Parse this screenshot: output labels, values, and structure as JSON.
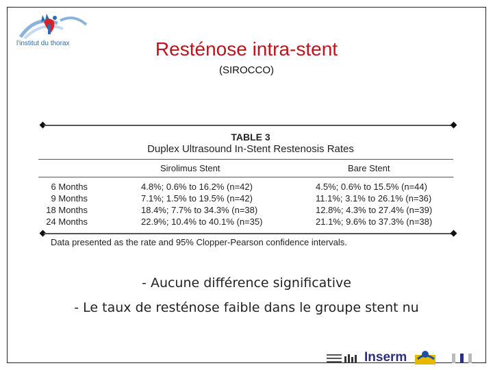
{
  "logo": {
    "text": "l'institut du thorax"
  },
  "title": "Resténose intra-stent",
  "subtitle": "(SIROCCO)",
  "table": {
    "label": "TABLE 3",
    "caption": "Duplex Ultrasound In-Stent Restenosis Rates",
    "col_siro": "Sirolimus Stent",
    "col_bare": "Bare Stent",
    "rows": [
      {
        "label": "6 Months",
        "siro": "4.8%; 0.6% to 16.2% (n=42)",
        "bare": "4.5%; 0.6% to 15.5% (n=44)"
      },
      {
        "label": "9 Months",
        "siro": "7.1%; 1.5% to 19.5% (n=42)",
        "bare": "11.1%; 3.1% to 26.1% (n=36)"
      },
      {
        "label": "18 Months",
        "siro": "18.4%; 7.7% to 34.3% (n=38)",
        "bare": "12.8%; 4.3% to 27.4% (n=39)"
      },
      {
        "label": "24 Months",
        "siro": "22.9%; 10.4% to 40.1% (n=35)",
        "bare": "21.1%; 9.6% to 37.3% (n=38)"
      }
    ],
    "footnote": "Data presented as the rate and 95% Clopper-Pearson confidence intervals."
  },
  "bullets": [
    "- Aucune différence significative",
    "- Le taux de resténose faible dans le groupe stent nu"
  ],
  "footer": {
    "inserm": "Inserm"
  },
  "colors": {
    "title": "#c0121b",
    "logo_blue": "#2a6db0",
    "inserm": "#2b2f7d"
  }
}
